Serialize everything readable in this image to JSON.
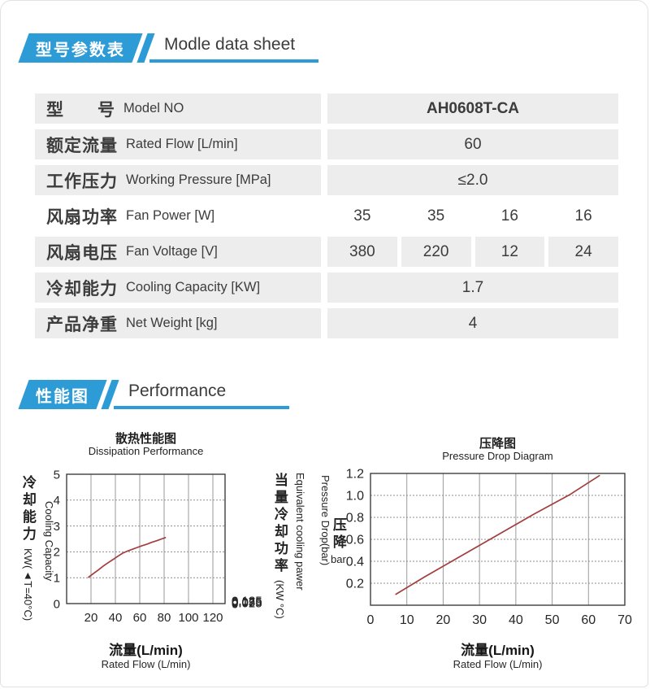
{
  "accent_color": "#2d9bd6",
  "line_color": "#a33e3e",
  "sections": [
    {
      "badge": "型号参数表",
      "title": "Modle data sheet"
    },
    {
      "badge": "性能图",
      "title": "Performance"
    }
  ],
  "table": {
    "rows": [
      {
        "cn": "型      号",
        "en": "Model NO",
        "values": [
          "AH0608T-CA"
        ],
        "bold": true
      },
      {
        "cn": "额定流量",
        "en": "Rated Flow [L/min]",
        "values": [
          "60"
        ]
      },
      {
        "cn": "工作压力",
        "en": "Working Pressure [MPa]",
        "values": [
          "≤2.0"
        ]
      },
      {
        "cn": "风扇功率",
        "en": "Fan Power [W]",
        "values": [
          "35",
          "35",
          "16",
          "16"
        ],
        "light": true
      },
      {
        "cn": "风扇电压",
        "en": "Fan Voltage [V]",
        "values": [
          "380",
          "220",
          "12",
          "24"
        ]
      },
      {
        "cn": "冷却能力",
        "en": "Cooling Capacity [KW]",
        "values": [
          "1.7"
        ]
      },
      {
        "cn": "产品净重",
        "en": "Net Weight [kg]",
        "values": [
          "4"
        ]
      }
    ]
  },
  "chart_data": [
    {
      "type": "line",
      "title_cn": "散热性能图",
      "title_en": "Dissipation Performance",
      "xlabel_cn": "流量(L/min)",
      "xlabel_en": "Rated Flow (L/min)",
      "ylabel_left_cn": "冷却能力",
      "ylabel_left_en": "Cooling Capacity",
      "ylabel_left_unit": "KW(▲T=40°C)",
      "ylabel_right_cn": "当量冷却功率",
      "ylabel_right_en": "Equivalent cooling pawer",
      "ylabel_right_unit": "(KW °C)",
      "xlim": [
        0,
        130
      ],
      "ylim": [
        0,
        5
      ],
      "xticks": [
        20,
        40,
        60,
        80,
        100,
        120
      ],
      "yticks_left": [
        "0",
        "1",
        "2",
        "3",
        "4",
        "5"
      ],
      "yticks_right": [
        "0",
        "0.025",
        "0.05",
        "0.075",
        "0.1",
        "0.125"
      ],
      "grid": true,
      "line_color": "#a33e3e",
      "series": [
        {
          "name": "cooling-capacity-curve",
          "points": [
            [
              18,
              1.02
            ],
            [
              22,
              1.16
            ],
            [
              26,
              1.3
            ],
            [
              30,
              1.45
            ],
            [
              34,
              1.58
            ],
            [
              38,
              1.7
            ],
            [
              42,
              1.83
            ],
            [
              46,
              1.95
            ],
            [
              50,
              2.03
            ],
            [
              54,
              2.1
            ],
            [
              58,
              2.17
            ],
            [
              62,
              2.24
            ],
            [
              66,
              2.3
            ],
            [
              70,
              2.37
            ],
            [
              74,
              2.43
            ],
            [
              78,
              2.5
            ],
            [
              81,
              2.55
            ]
          ]
        }
      ]
    },
    {
      "type": "line",
      "title_cn": "压降图",
      "title_en": "Pressure Drop Diagram",
      "xlabel_cn": "流量(L/min)",
      "xlabel_en": "Rated Flow (L/min)",
      "ylabel_cn": "压降",
      "ylabel_unit": "bar",
      "ylabel_en": "Pressure Drop(bar)",
      "xlim": [
        0,
        70
      ],
      "ylim": [
        0,
        1.2
      ],
      "xticks": [
        0,
        10,
        20,
        30,
        40,
        50,
        60,
        70
      ],
      "yticks_left": [
        "0.2",
        "0.4",
        "0.6",
        "0.8",
        "1.0",
        "1.2"
      ],
      "grid": true,
      "line_color": "#a33e3e",
      "series": [
        {
          "name": "pressure-drop-line",
          "points": [
            [
              7,
              0.1
            ],
            [
              15,
              0.26
            ],
            [
              25,
              0.45
            ],
            [
              35,
              0.64
            ],
            [
              45,
              0.83
            ],
            [
              55,
              1.01
            ],
            [
              63,
              1.18
            ]
          ]
        }
      ]
    }
  ]
}
